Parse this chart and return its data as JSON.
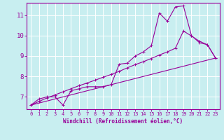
{
  "xlabel": "Windchill (Refroidissement éolien,°C)",
  "background_color": "#c8eef0",
  "line_color": "#990099",
  "grid_color": "#ffffff",
  "xlim": [
    -0.5,
    23.5
  ],
  "ylim": [
    6.4,
    11.6
  ],
  "yticks": [
    7,
    8,
    9,
    10,
    11
  ],
  "xticks": [
    0,
    1,
    2,
    3,
    4,
    5,
    6,
    7,
    8,
    9,
    10,
    11,
    12,
    13,
    14,
    15,
    16,
    17,
    18,
    19,
    20,
    21,
    22,
    23
  ],
  "series1_x": [
    0,
    1,
    2,
    3,
    4,
    5,
    6,
    7,
    8,
    9,
    10,
    11,
    12,
    13,
    14,
    15,
    16,
    17,
    18,
    19,
    20,
    21,
    22,
    23
  ],
  "series1_y": [
    6.6,
    6.9,
    7.0,
    7.0,
    6.6,
    7.3,
    7.4,
    7.5,
    7.5,
    7.5,
    7.6,
    8.6,
    8.65,
    9.0,
    9.2,
    9.5,
    11.1,
    10.7,
    11.4,
    11.45,
    10.0,
    9.65,
    9.55,
    8.9
  ],
  "series2_x": [
    0,
    1,
    2,
    3,
    4,
    5,
    6,
    7,
    8,
    9,
    10,
    11,
    12,
    13,
    14,
    15,
    16,
    17,
    18,
    19,
    20,
    21,
    22,
    23
  ],
  "series2_y": [
    6.6,
    6.78,
    6.95,
    7.1,
    7.25,
    7.4,
    7.55,
    7.68,
    7.82,
    7.96,
    8.1,
    8.25,
    8.42,
    8.58,
    8.72,
    8.88,
    9.05,
    9.2,
    9.38,
    10.22,
    9.98,
    9.72,
    9.55,
    8.9
  ],
  "series3_x": [
    0,
    23
  ],
  "series3_y": [
    6.6,
    8.9
  ]
}
